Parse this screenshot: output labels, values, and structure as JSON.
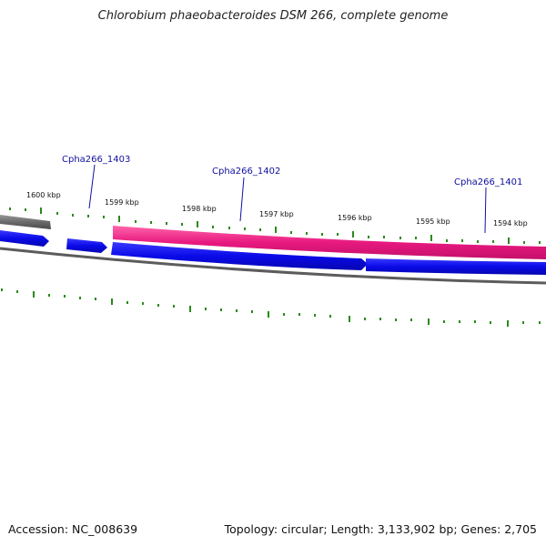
{
  "title": "Chlorobium phaeobacteroides DSM 266, complete genome",
  "footer": {
    "accession": "Accession: NC_008639",
    "summary": "Topology: circular; Length: 3,133,902 bp; Genes: 2,705"
  },
  "ticks": {
    "labels": [
      "1600 kbp",
      "1599 kbp",
      "1598 kbp",
      "1597 kbp",
      "1596 kbp",
      "1595 kbp",
      "1594 kbp"
    ]
  },
  "genes": [
    {
      "label": "Cpha266_1403"
    },
    {
      "label": "Cpha266_1402"
    },
    {
      "label": "Cpha266_1401"
    }
  ],
  "colors": {
    "forward_pink": "#e8197f",
    "reverse_blue": "#0a0ae8",
    "gray_feature": "#777777",
    "tick_green": "#2a8a1a",
    "label_blue": "#1010a0"
  }
}
